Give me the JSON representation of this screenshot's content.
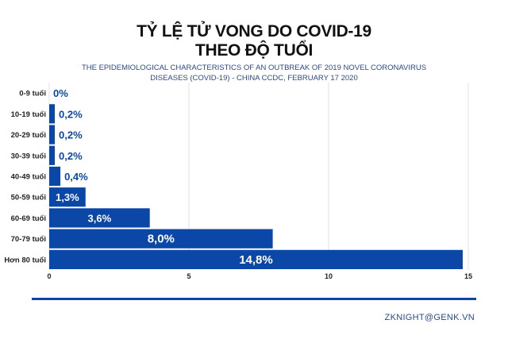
{
  "chart_data": {
    "type": "bar",
    "orientation": "horizontal",
    "title_line1": "TỶ LỆ TỬ VONG DO COVID-19",
    "title_line2": "THEO ĐỘ TUỔI",
    "subtitle_line1": "THE EPIDEMIOLOGICAL CHARACTERISTICS OF AN OUTBREAK OF 2019 NOVEL CORONAVIRUS",
    "subtitle_line2": "DISEASES (COVID-19) - CHINA CCDC, FEBRUARY 17 2020",
    "categories": [
      "0-9 tuổi",
      "10-19 tuổi",
      "20-29 tuổi",
      "30-39 tuổi",
      "40-49 tuổi",
      "50-59 tuổi",
      "60-69 tuổi",
      "70-79 tuổi",
      "Hơn 80 tuổi"
    ],
    "values": [
      0,
      0.2,
      0.2,
      0.2,
      0.4,
      1.3,
      3.6,
      8.0,
      14.8
    ],
    "data_labels": [
      "0%",
      "0,2%",
      "0,2%",
      "0,2%",
      "0,4%",
      "1,3%",
      "3,6%",
      "8,0%",
      "14,8%"
    ],
    "xlim": [
      0,
      15
    ],
    "xticks": [
      "0",
      "5",
      "10",
      "15"
    ],
    "xtick_values": [
      0,
      5,
      10,
      15
    ],
    "grid": true,
    "legend": "none",
    "colors": {
      "bar": "#0b47a6",
      "label_outside": "#0b47a6",
      "label_inside": "#ffffff",
      "grid": "#e2e2e2",
      "rule": "#0b47a6"
    }
  },
  "footer": "ZKNIGHT@GENK.VN"
}
